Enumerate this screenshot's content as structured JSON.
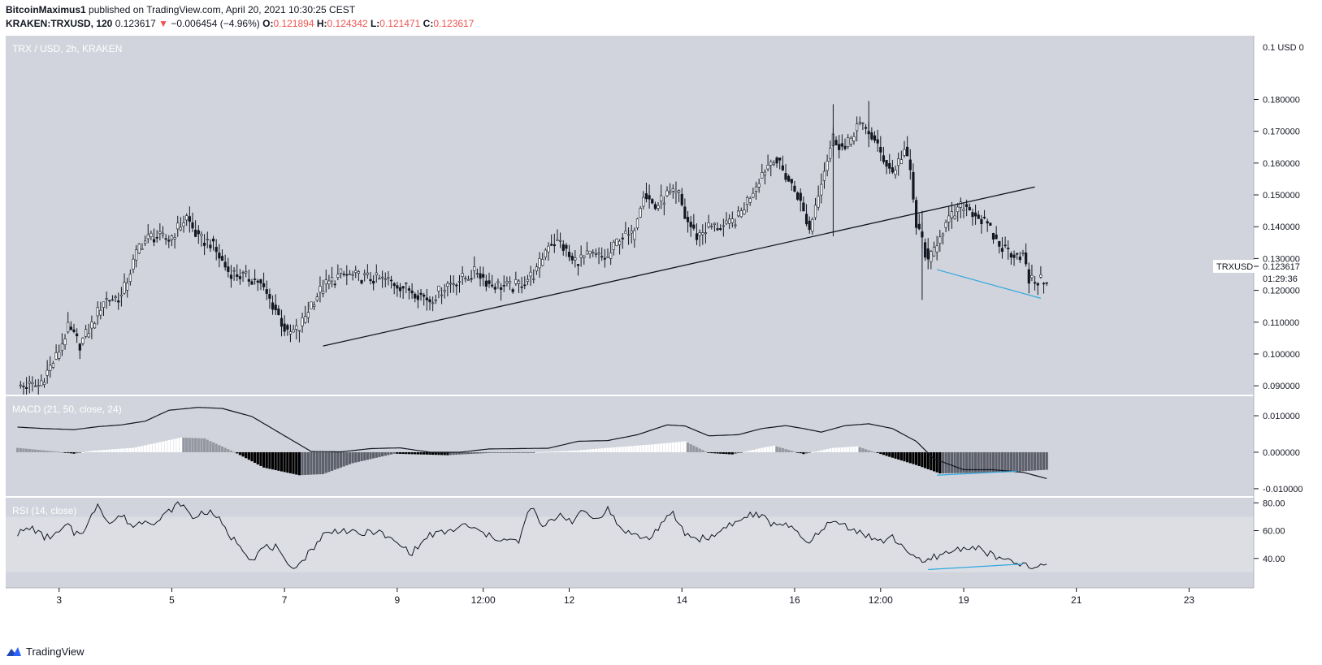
{
  "header": {
    "author": "BitcoinMaximus1",
    "published": "published on TradingView.com, April 20, 2021 10:30:25 CEST",
    "symbol": "KRAKEN:TRXUSD, 120",
    "last": "0.123617",
    "change_arrow": "▼",
    "change": "−0.006454 (−4.96%)",
    "o_label": "O:",
    "o_value": "0.121894",
    "h_label": "H:",
    "h_value": "0.124342",
    "l_label": "L:",
    "l_value": "0.121471",
    "c_label": "C:",
    "c_value": "0.123617"
  },
  "footer": {
    "brand": "TradingView",
    "logo_icon": "tradingview-logo-icon"
  },
  "colors": {
    "pane_bg": "#d1d4dc",
    "rsi_band": "#dcdee4",
    "text": "#131722",
    "axis_text": "#131722",
    "down": "#ef5350",
    "divergence": "#2fa8e0"
  },
  "chart_data": [
    {
      "type": "candlestick",
      "title": "TRX / USD, 2h, KRAKEN",
      "price_axis_note": "0.1 USD 0",
      "last_price_tag": {
        "symbol": "TRXUSD",
        "value": "0.123617",
        "countdown": "01:29:36"
      },
      "x_tick_labels": [
        "3",
        "5",
        "7",
        "9",
        "12:00",
        "12",
        "14",
        "16",
        "12:00",
        "19",
        "21",
        "23"
      ],
      "y_tick_labels": [
        "0.180000",
        "0.170000",
        "0.160000",
        "0.150000",
        "0.140000",
        "0.130000",
        "0.120000",
        "0.110000",
        "0.100000",
        "0.090000"
      ],
      "ylim": [
        0.0885,
        0.1985
      ],
      "anchors": [
        [
          1,
          0.09
        ],
        [
          8,
          0.09
        ],
        [
          14,
          0.099
        ],
        [
          18,
          0.108
        ],
        [
          22,
          0.103
        ],
        [
          26,
          0.109
        ],
        [
          30,
          0.117
        ],
        [
          36,
          0.118
        ],
        [
          42,
          0.134
        ],
        [
          46,
          0.137
        ],
        [
          52,
          0.136
        ],
        [
          58,
          0.143
        ],
        [
          62,
          0.136
        ],
        [
          66,
          0.135
        ],
        [
          72,
          0.126
        ],
        [
          78,
          0.124
        ],
        [
          82,
          0.123
        ],
        [
          88,
          0.114
        ],
        [
          92,
          0.106
        ],
        [
          96,
          0.108
        ],
        [
          100,
          0.116
        ],
        [
          104,
          0.121
        ],
        [
          110,
          0.125
        ],
        [
          118,
          0.124
        ],
        [
          126,
          0.123
        ],
        [
          134,
          0.12
        ],
        [
          140,
          0.117
        ],
        [
          146,
          0.122
        ],
        [
          152,
          0.124
        ],
        [
          156,
          0.126
        ],
        [
          160,
          0.122
        ],
        [
          168,
          0.121
        ],
        [
          172,
          0.123
        ],
        [
          176,
          0.126
        ],
        [
          180,
          0.135
        ],
        [
          184,
          0.135
        ],
        [
          188,
          0.129
        ],
        [
          194,
          0.131
        ],
        [
          200,
          0.13
        ],
        [
          204,
          0.137
        ],
        [
          208,
          0.137
        ],
        [
          212,
          0.151
        ],
        [
          216,
          0.146
        ],
        [
          220,
          0.15
        ],
        [
          224,
          0.15
        ],
        [
          226,
          0.143
        ],
        [
          230,
          0.137
        ],
        [
          234,
          0.14
        ],
        [
          240,
          0.14
        ],
        [
          244,
          0.143
        ],
        [
          248,
          0.15
        ],
        [
          252,
          0.157
        ],
        [
          256,
          0.162
        ],
        [
          260,
          0.156
        ],
        [
          264,
          0.15
        ],
        [
          268,
          0.139
        ],
        [
          272,
          0.155
        ],
        [
          276,
          0.168
        ],
        [
          280,
          0.164
        ],
        [
          284,
          0.172
        ],
        [
          288,
          0.17
        ],
        [
          292,
          0.163
        ],
        [
          296,
          0.157
        ],
        [
          300,
          0.164
        ],
        [
          302,
          0.157
        ],
        [
          304,
          0.14
        ],
        [
          306,
          0.136
        ],
        [
          308,
          0.128
        ],
        [
          312,
          0.138
        ],
        [
          316,
          0.143
        ],
        [
          320,
          0.147
        ],
        [
          324,
          0.144
        ],
        [
          328,
          0.14
        ],
        [
          332,
          0.134
        ],
        [
          336,
          0.132
        ],
        [
          340,
          0.131
        ],
        [
          342,
          0.123
        ],
        [
          346,
          0.123
        ],
        [
          348,
          0.1236
        ]
      ],
      "ascending_trendline": [
        [
          0.1025,
          0.1525
        ]
      ],
      "divergence_line": [
        [
          0.1265,
          0.1175
        ]
      ]
    },
    {
      "type": "line+histogram",
      "title": "MACD (21, 50, close, 24)",
      "y_tick_labels": [
        "0.010000",
        "0.000000",
        "-0.010000"
      ],
      "ylim": [
        -0.0118,
        0.0149
      ],
      "macd_anchors": [
        [
          1,
          0.0069
        ],
        [
          10,
          0.0065
        ],
        [
          20,
          0.0062
        ],
        [
          28,
          0.007
        ],
        [
          36,
          0.0075
        ],
        [
          44,
          0.0085
        ],
        [
          52,
          0.0115
        ],
        [
          62,
          0.0123
        ],
        [
          70,
          0.012
        ],
        [
          80,
          0.0098
        ],
        [
          90,
          0.005
        ],
        [
          100,
          0.0002
        ],
        [
          110,
          0.0001
        ],
        [
          120,
          0.001
        ],
        [
          130,
          0.0012
        ],
        [
          140,
          0.0
        ],
        [
          150,
          0.0
        ],
        [
          160,
          0.0009
        ],
        [
          170,
          0.001
        ],
        [
          180,
          0.0011
        ],
        [
          190,
          0.003
        ],
        [
          200,
          0.0032
        ],
        [
          210,
          0.0048
        ],
        [
          220,
          0.0075
        ],
        [
          226,
          0.0072
        ],
        [
          234,
          0.0045
        ],
        [
          244,
          0.0048
        ],
        [
          252,
          0.0065
        ],
        [
          260,
          0.0073
        ],
        [
          266,
          0.0065
        ],
        [
          272,
          0.0055
        ],
        [
          280,
          0.0073
        ],
        [
          288,
          0.0078
        ],
        [
          296,
          0.0065
        ],
        [
          304,
          0.003
        ],
        [
          310,
          -0.0018
        ],
        [
          320,
          -0.0048
        ],
        [
          330,
          -0.0048
        ],
        [
          340,
          -0.0055
        ],
        [
          348,
          -0.0072
        ]
      ],
      "hist_anchors": [
        [
          1,
          0.0012
        ],
        [
          14,
          0.0002
        ],
        [
          20,
          -0.0004
        ],
        [
          26,
          0.0004
        ],
        [
          40,
          0.0012
        ],
        [
          56,
          0.004
        ],
        [
          64,
          0.0038
        ],
        [
          74,
          0.0001
        ],
        [
          84,
          -0.0042
        ],
        [
          96,
          -0.0063
        ],
        [
          104,
          -0.006
        ],
        [
          114,
          -0.003
        ],
        [
          128,
          -0.0004
        ],
        [
          146,
          -0.0008
        ],
        [
          160,
          -0.0002
        ],
        [
          176,
          0.0
        ],
        [
          190,
          0.0005
        ],
        [
          200,
          0.0012
        ],
        [
          216,
          0.0022
        ],
        [
          226,
          0.003
        ],
        [
          234,
          -0.0002
        ],
        [
          242,
          -0.0006
        ],
        [
          252,
          0.0012
        ],
        [
          256,
          0.0018
        ],
        [
          266,
          -0.0005
        ],
        [
          276,
          0.0012
        ],
        [
          284,
          0.0016
        ],
        [
          294,
          -0.001
        ],
        [
          304,
          -0.0035
        ],
        [
          312,
          -0.0058
        ],
        [
          320,
          -0.0057
        ],
        [
          334,
          -0.0055
        ],
        [
          348,
          -0.0048
        ]
      ],
      "divergence_line": [
        [
          -0.0063,
          -0.0052
        ]
      ]
    },
    {
      "type": "line",
      "title": "RSI (14, close)",
      "y_tick_labels": [
        "80.00",
        "60.00",
        "40.00"
      ],
      "ylim": [
        20,
        82.5
      ],
      "band": [
        30,
        70
      ],
      "anchors": [
        [
          1,
          58
        ],
        [
          6,
          62
        ],
        [
          10,
          55
        ],
        [
          14,
          57
        ],
        [
          18,
          64
        ],
        [
          20,
          58
        ],
        [
          24,
          61
        ],
        [
          28,
          80
        ],
        [
          32,
          65
        ],
        [
          36,
          71
        ],
        [
          40,
          63
        ],
        [
          44,
          68
        ],
        [
          48,
          66
        ],
        [
          52,
          74
        ],
        [
          56,
          80
        ],
        [
          60,
          69
        ],
        [
          64,
          74
        ],
        [
          68,
          71
        ],
        [
          72,
          57
        ],
        [
          76,
          50
        ],
        [
          80,
          39
        ],
        [
          84,
          48
        ],
        [
          88,
          48
        ],
        [
          92,
          34
        ],
        [
          96,
          36
        ],
        [
          100,
          46
        ],
        [
          104,
          57
        ],
        [
          110,
          61
        ],
        [
          116,
          57
        ],
        [
          122,
          60
        ],
        [
          128,
          52
        ],
        [
          134,
          44
        ],
        [
          140,
          57
        ],
        [
          146,
          59
        ],
        [
          152,
          64
        ],
        [
          156,
          60
        ],
        [
          160,
          56
        ],
        [
          166,
          53
        ],
        [
          170,
          52
        ],
        [
          174,
          78
        ],
        [
          178,
          62
        ],
        [
          184,
          72
        ],
        [
          188,
          67
        ],
        [
          192,
          74
        ],
        [
          196,
          68
        ],
        [
          200,
          76
        ],
        [
          204,
          62
        ],
        [
          210,
          56
        ],
        [
          214,
          54
        ],
        [
          218,
          65
        ],
        [
          222,
          72
        ],
        [
          226,
          58
        ],
        [
          230,
          54
        ],
        [
          236,
          56
        ],
        [
          240,
          64
        ],
        [
          244,
          66
        ],
        [
          248,
          72
        ],
        [
          252,
          70
        ],
        [
          256,
          64
        ],
        [
          260,
          66
        ],
        [
          264,
          57
        ],
        [
          268,
          50
        ],
        [
          272,
          62
        ],
        [
          276,
          66
        ],
        [
          280,
          64
        ],
        [
          284,
          60
        ],
        [
          288,
          56
        ],
        [
          292,
          52
        ],
        [
          296,
          55
        ],
        [
          300,
          48
        ],
        [
          304,
          40
        ],
        [
          306,
          36
        ],
        [
          310,
          41
        ],
        [
          316,
          45
        ],
        [
          320,
          48
        ],
        [
          324,
          48
        ],
        [
          328,
          44
        ],
        [
          332,
          40
        ],
        [
          336,
          37
        ],
        [
          340,
          36
        ],
        [
          342,
          33
        ],
        [
          346,
          34
        ],
        [
          348,
          36
        ]
      ],
      "divergence_line": [
        [
          32,
          36
        ]
      ]
    }
  ]
}
